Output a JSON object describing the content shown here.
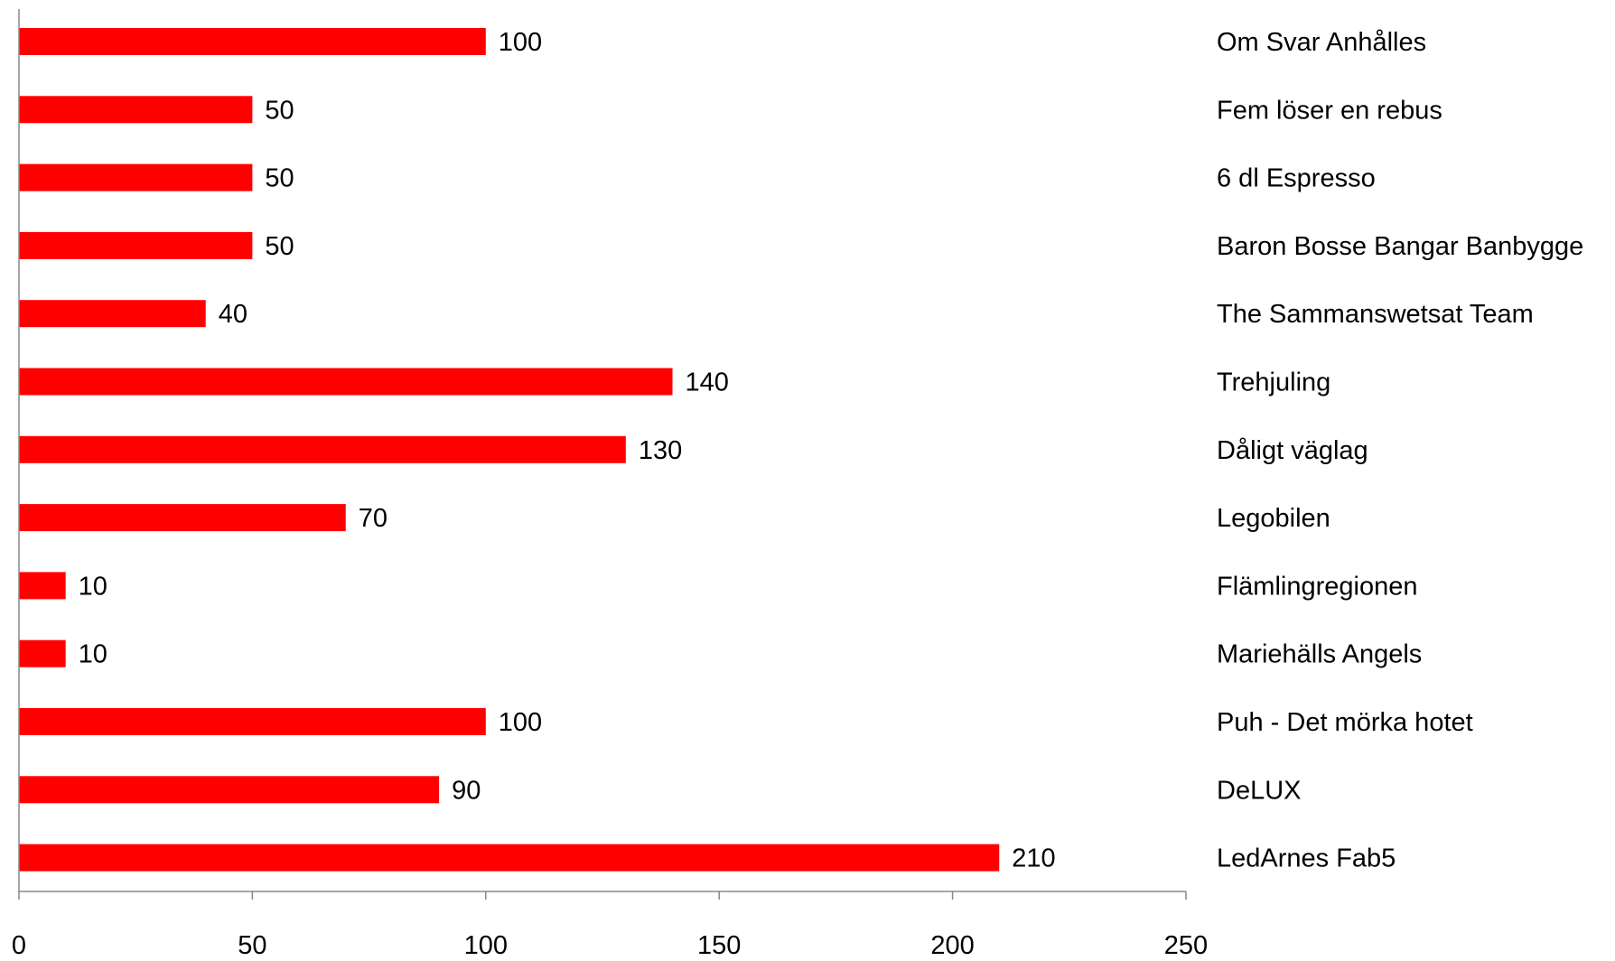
{
  "chart_data": {
    "type": "bar",
    "orientation": "horizontal",
    "title": "",
    "xlabel": "",
    "ylabel": "",
    "xlim": [
      0,
      250
    ],
    "x_ticks": [
      0,
      50,
      100,
      150,
      200,
      250
    ],
    "grid": false,
    "legend": "none",
    "bar_color": "#ff0000",
    "category_labels_position": "right",
    "categories": [
      "Om Svar Anhålles",
      "Fem löser en rebus",
      "6 dl Espresso",
      "Baron Bosse Bangar Banbygge",
      "The Sammanswetsat Team",
      "Trehjuling",
      "Dåligt väglag",
      "Legobilen",
      "Flämlingregionen",
      "Mariehälls Angels",
      "Puh - Det mörka hotet",
      "DeLUX",
      "LedArnes Fab5"
    ],
    "values": [
      100,
      50,
      50,
      50,
      40,
      140,
      130,
      70,
      10,
      10,
      100,
      90,
      210
    ]
  }
}
